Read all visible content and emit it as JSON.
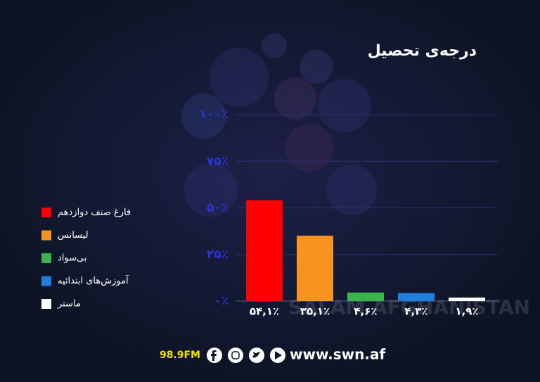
{
  "chart_data": {
    "type": "bar",
    "title": "درجه‌ی تحصیل",
    "categories": [
      "فارغ صنف دوازدهم",
      "لیسانس",
      "بی‌سواد",
      "آموزش‌های ابتدائیه",
      "ماستر"
    ],
    "values": [
      54.1,
      35.1,
      4.6,
      4.3,
      1.9
    ],
    "value_labels": [
      "۵۴,۱٪",
      "۳۵,۱٪",
      "۴,۶٪",
      "۴,۳٪",
      "۱,۹٪"
    ],
    "colors": [
      "#ff0000",
      "#f7931e",
      "#39b54a",
      "#1e7fe0",
      "#ffffff"
    ],
    "ylim": [
      0,
      100
    ],
    "yticks": [
      {
        "value": 0,
        "label": "۰٪"
      },
      {
        "value": 25,
        "label": "۲۵٪"
      },
      {
        "value": 50,
        "label": "۵۰٪"
      },
      {
        "value": 75,
        "label": "۷۵٪"
      },
      {
        "value": 100,
        "label": "۱۰۰٪"
      }
    ],
    "grid": true
  },
  "watermark": "SALAM AFGHANISTAN",
  "footer": {
    "radio": "98.9FM",
    "website": "www.swn.af"
  }
}
